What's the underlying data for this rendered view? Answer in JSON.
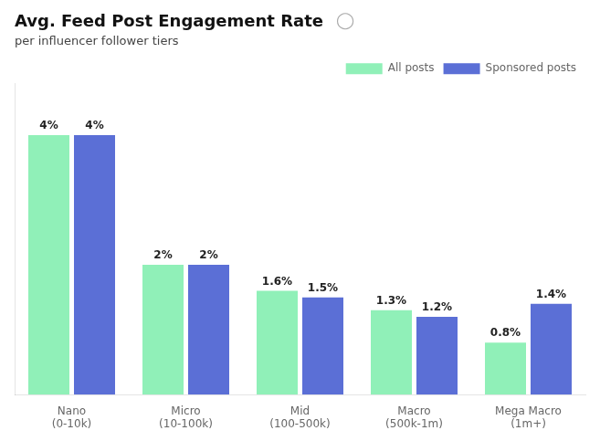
{
  "chart_data": {
    "type": "bar",
    "title": "Avg. Feed Post Engagement Rate",
    "subtitle": "per influencer follower tiers",
    "annotations": [
      "◯"
    ],
    "categories": [
      [
        "Nano",
        "(0-10k)"
      ],
      [
        "Micro",
        "(10-100k)"
      ],
      [
        "Mid",
        "(100-500k)"
      ],
      [
        "Macro",
        "(500k-1m)"
      ],
      [
        "Mega Macro",
        "(1m+)"
      ]
    ],
    "series": [
      {
        "name": "All posts",
        "color": "#90F0B8",
        "values": [
          4.0,
          2.0,
          1.6,
          1.3,
          0.8
        ],
        "value_labels": [
          "4%",
          "2%",
          "1.6%",
          "1.3%",
          "0.8%"
        ]
      },
      {
        "name": "Sponsored posts",
        "color": "#5B6FD6",
        "values": [
          4.0,
          2.0,
          1.5,
          1.2,
          1.4
        ],
        "value_labels": [
          "4%",
          "2%",
          "1.5%",
          "1.2%",
          "1.4%"
        ]
      }
    ],
    "ylim": [
      0,
      4.8
    ],
    "grid": false,
    "legend": "upper right",
    "data_labels": true,
    "tick_labels": "x"
  }
}
